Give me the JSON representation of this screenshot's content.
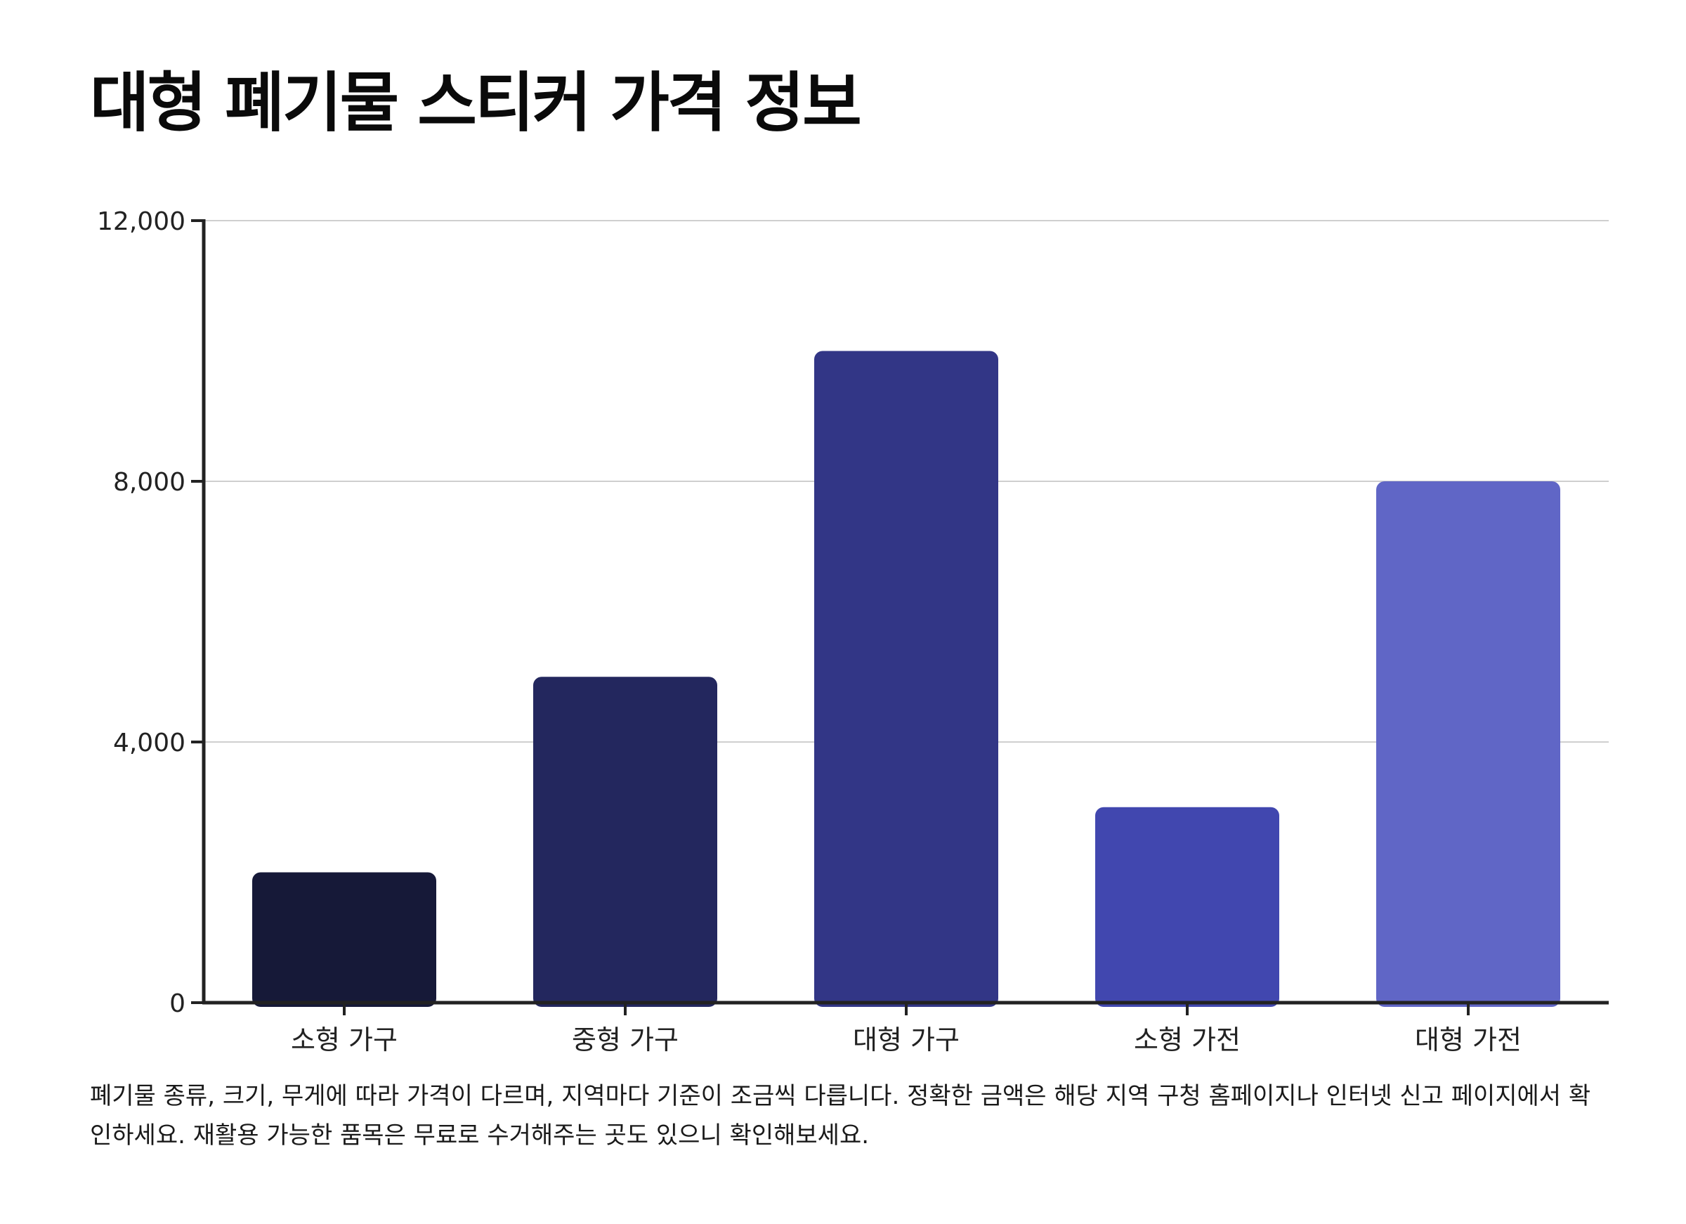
{
  "chart_data": {
    "type": "bar",
    "title": "대형 폐기물 스티커 가격 정보",
    "categories": [
      "소형 가구",
      "중형 가구",
      "대형 가구",
      "소형 가전",
      "대형 가전"
    ],
    "values": [
      2000,
      5000,
      10000,
      3000,
      8000
    ],
    "colors": [
      "#161938",
      "#23275e",
      "#323686",
      "#4147af",
      "#6066c6"
    ],
    "ylim": [
      0,
      12000
    ],
    "yticks": [
      0,
      4000,
      8000,
      12000
    ],
    "ytick_labels": [
      "0",
      "4,000",
      "8,000",
      "12,000"
    ],
    "grid": true,
    "xlabel": "",
    "ylabel": ""
  },
  "caption": "폐기물 종류, 크기, 무게에 따라 가격이 다르며, 지역마다 기준이 조금씩 다릅니다. 정확한 금액은 해당 지역 구청 홈페이지나 인터넷 신고 페이지에서 확인하세요. 재활용 가능한 품목은 무료로 수거해주는 곳도 있으니 확인해보세요."
}
